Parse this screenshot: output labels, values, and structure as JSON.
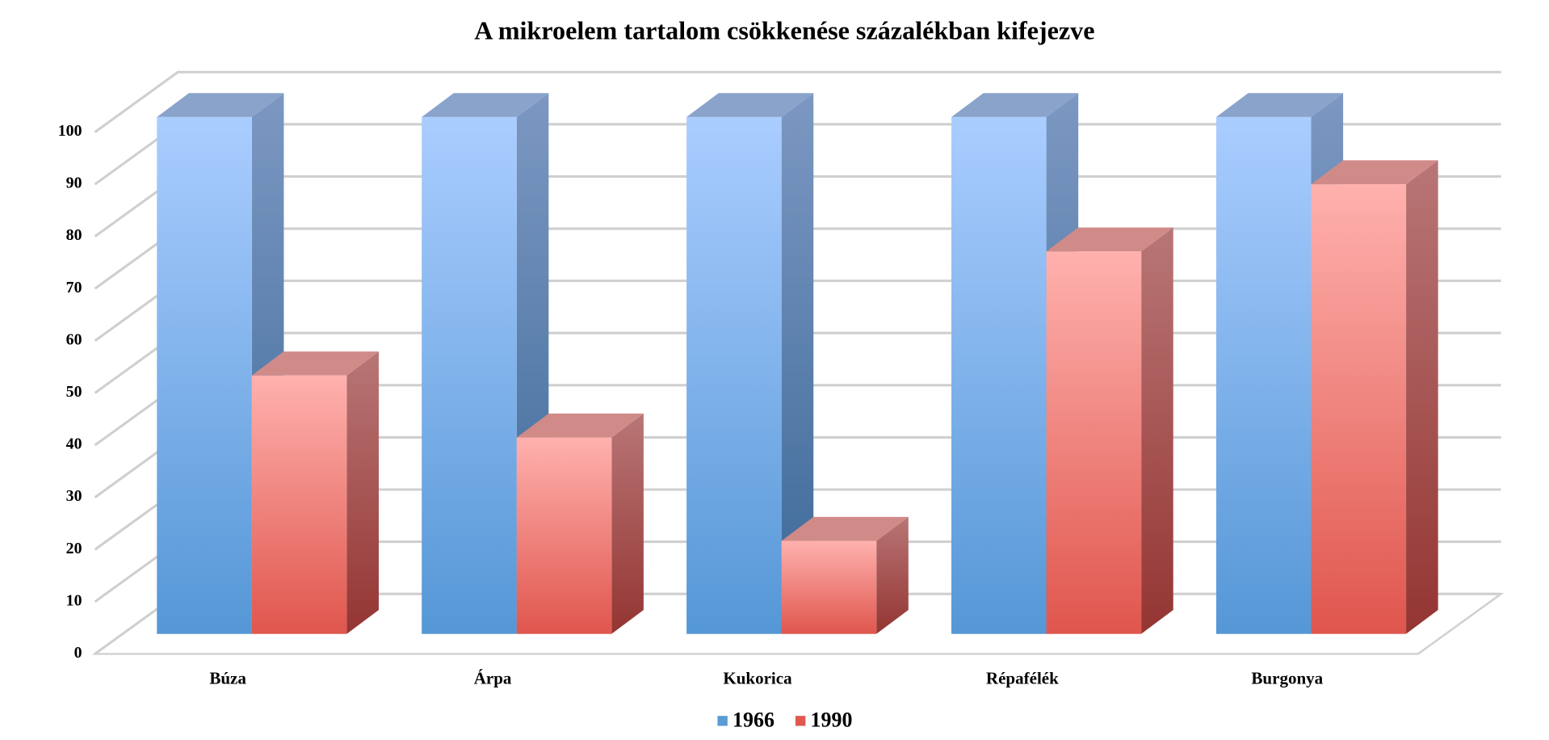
{
  "chart_data": {
    "type": "bar3d",
    "title": "A mikroelem tartalom csökkenése százalékban kifejezve",
    "categories": [
      "Búza",
      "Árpa",
      "Kukorica",
      "Répafélék",
      "Burgonya"
    ],
    "series": [
      {
        "name": "1966",
        "color": "#5b9bd5",
        "values": [
          100,
          100,
          100,
          100,
          100
        ]
      },
      {
        "name": "1990",
        "color": "#e0584f",
        "values": [
          50,
          38,
          18,
          74,
          87
        ]
      }
    ],
    "ylim": [
      0,
      100
    ],
    "yticks": [
      0,
      10,
      20,
      30,
      40,
      50,
      60,
      70,
      80,
      90,
      100
    ],
    "grid": true,
    "legend": "bottom"
  }
}
